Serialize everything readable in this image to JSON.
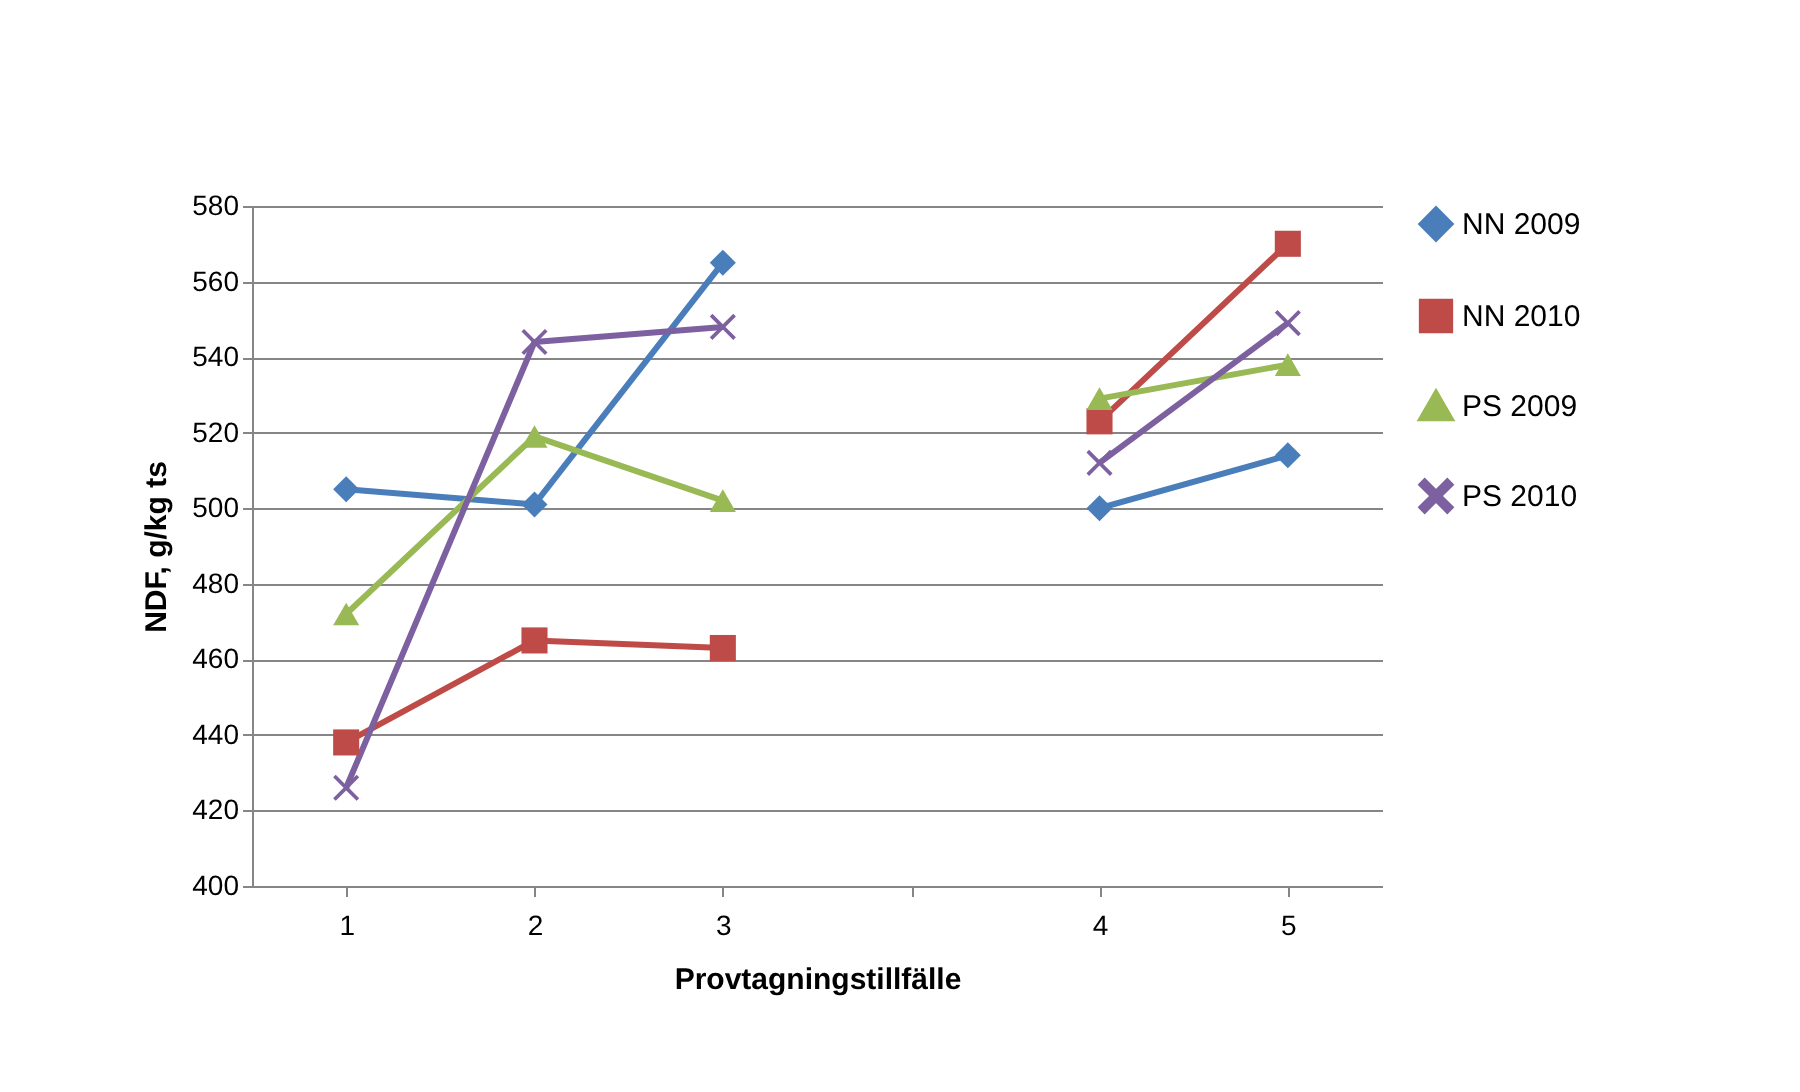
{
  "chart_data": {
    "type": "line",
    "xlabel": "Provtagningstillfälle",
    "ylabel": "NDF, g/kg ts",
    "categories": [
      "1",
      "2",
      "3",
      null,
      "4",
      "5"
    ],
    "ylim": [
      400,
      580
    ],
    "yticks": [
      400,
      420,
      440,
      460,
      480,
      500,
      520,
      540,
      560,
      580
    ],
    "grid": "y",
    "legend": "right",
    "series": [
      {
        "name": "NN 2009",
        "color": "#4a7ebb",
        "marker": "diamond",
        "values": [
          505,
          501,
          565,
          null,
          500,
          514
        ]
      },
      {
        "name": "NN 2010",
        "color": "#be4b48",
        "marker": "square",
        "values": [
          438,
          465,
          463,
          null,
          523,
          570
        ]
      },
      {
        "name": "PS 2009",
        "color": "#98b954",
        "marker": "triangle",
        "values": [
          472,
          519,
          502,
          null,
          529,
          538
        ]
      },
      {
        "name": "PS 2010",
        "color": "#7d60a0",
        "marker": "cross",
        "values": [
          426,
          544,
          548,
          null,
          512,
          549
        ]
      }
    ]
  }
}
